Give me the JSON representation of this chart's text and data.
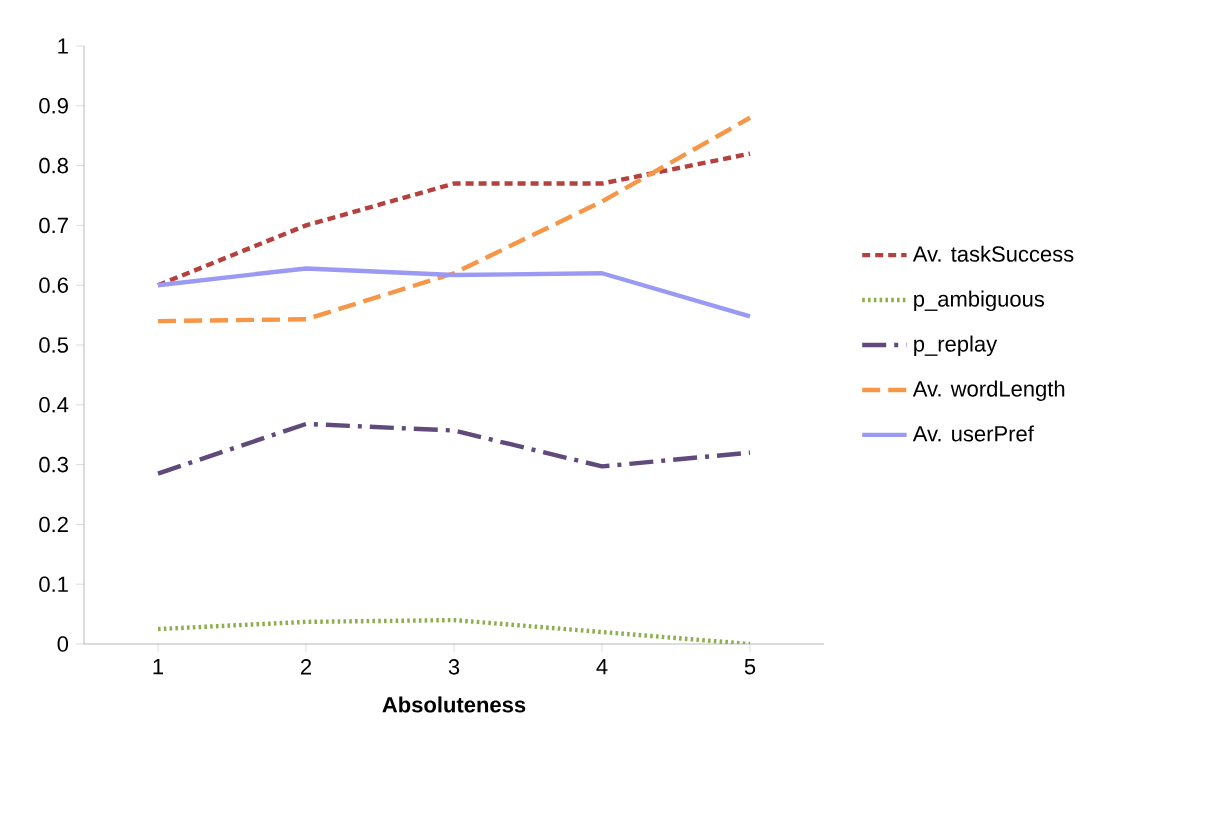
{
  "chart_data": {
    "type": "line",
    "xlabel": "Absoluteness",
    "categories": [
      "1",
      "2",
      "3",
      "4",
      "5"
    ],
    "series": [
      {
        "name": "Av. taskSuccess",
        "color": "#b5413e",
        "line_style": "dashed",
        "values": [
          0.6,
          0.7,
          0.77,
          0.77,
          0.82
        ]
      },
      {
        "name": "p_ambiguous",
        "color": "#8cb04c",
        "line_style": "dotted",
        "values": [
          0.025,
          0.037,
          0.04,
          0.02,
          0.0
        ]
      },
      {
        "name": "p_replay",
        "color": "#604a7b",
        "line_style": "dashdot",
        "values": [
          0.285,
          0.368,
          0.357,
          0.297,
          0.32
        ]
      },
      {
        "name": "Av. wordLength",
        "color": "#f79646",
        "line_style": "longdashed",
        "values": [
          0.54,
          0.543,
          0.62,
          0.74,
          0.88
        ]
      },
      {
        "name": "Av. userPref",
        "color": "#9a9af5",
        "line_style": "solid",
        "values": [
          0.6,
          0.628,
          0.617,
          0.62,
          0.548
        ]
      }
    ],
    "ylim": [
      0,
      1
    ],
    "yticks": [
      0,
      0.1,
      0.2,
      0.3,
      0.4,
      0.5,
      0.6,
      0.7,
      0.8,
      0.9,
      1
    ],
    "grid": false,
    "legend": "right",
    "marker": "none"
  }
}
